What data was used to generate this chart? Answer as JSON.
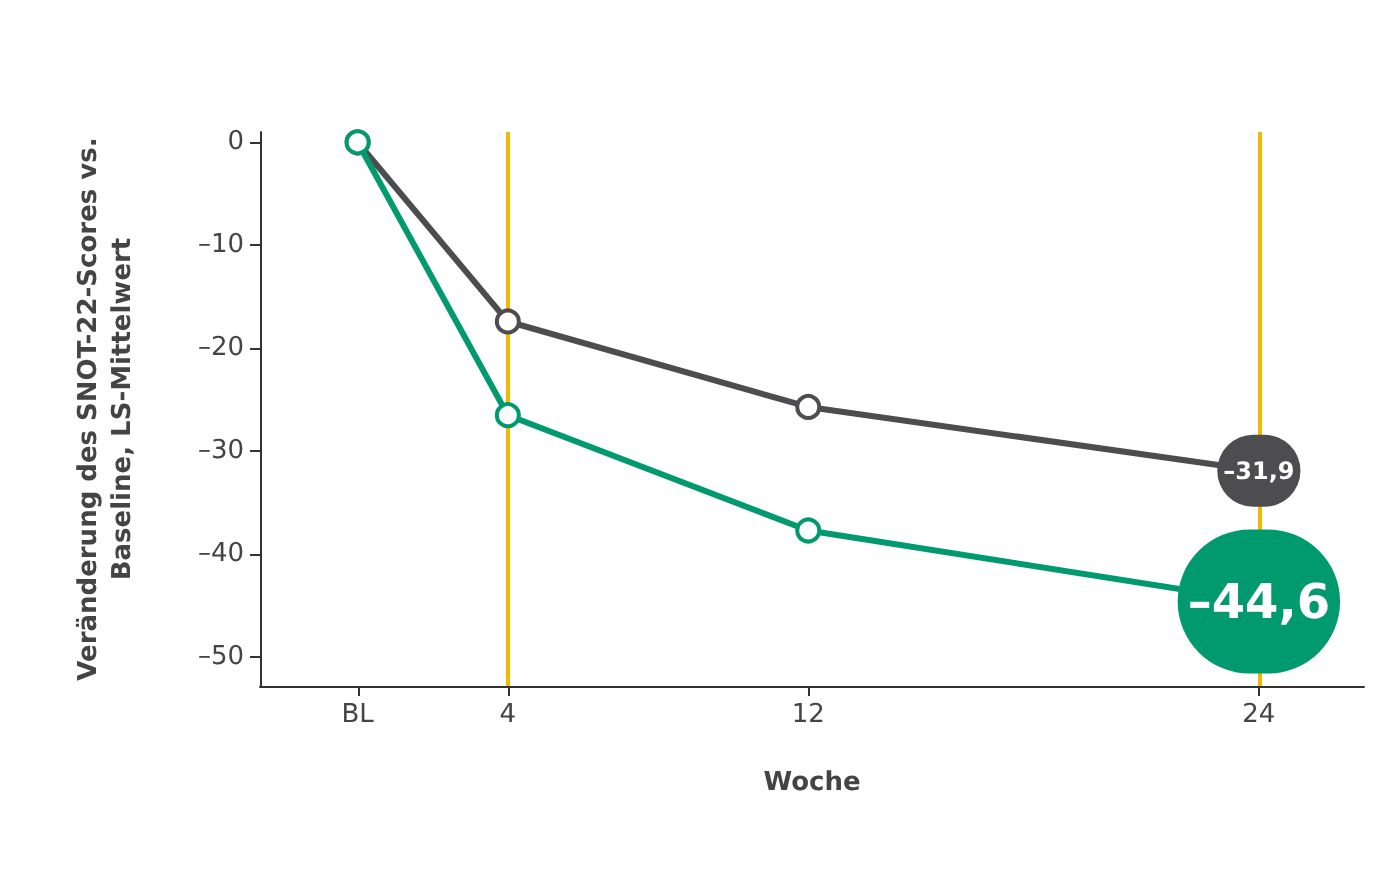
{
  "chart_data": {
    "type": "line",
    "xlabel": "Woche",
    "ylabel": "Veränderung des SNOT-22-Scores vs.\nBaseline, LS-Mittelwert",
    "x": [
      0,
      4,
      12,
      24
    ],
    "series": [
      {
        "color": "#4d4d4f",
        "values": [
          0,
          -17.4,
          -25.7,
          -31.9
        ],
        "value_labels": [
          null,
          null,
          null,
          "–31,9"
        ]
      },
      {
        "color": "#009a6e",
        "values": [
          0,
          -26.5,
          -37.7,
          -44.6
        ],
        "value_labels": [
          null,
          null,
          null,
          "–44,6"
        ]
      }
    ],
    "xlim": [
      -2.6,
      26.8
    ],
    "xticks": [
      {
        "value": 0,
        "label": "BL"
      },
      4,
      12,
      24
    ],
    "ylim": [
      -52.8,
      1
    ],
    "yticks": [
      0,
      {
        "value": -10,
        "label": "–10"
      },
      {
        "value": -20,
        "label": "–20"
      },
      {
        "value": -30,
        "label": "–30"
      },
      {
        "value": -40,
        "label": "–40"
      },
      {
        "value": -50,
        "label": "–50"
      }
    ],
    "ref_lines": [
      {
        "axis": "x",
        "value": 4,
        "color": "#f5b800"
      },
      {
        "axis": "x",
        "value": 24,
        "color": "#f5b800"
      }
    ],
    "grid": false,
    "marker": "circle",
    "line_style": "solid"
  }
}
